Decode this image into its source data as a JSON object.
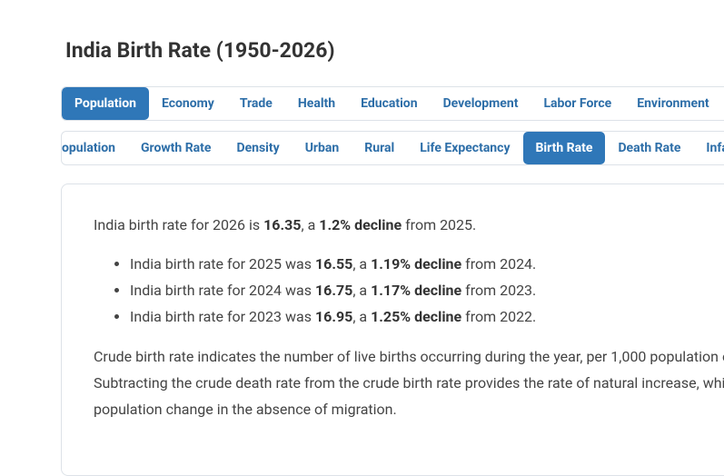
{
  "header": {
    "title": "India Birth Rate (1950-2026)"
  },
  "main_tabs": [
    "Population",
    "Economy",
    "Trade",
    "Health",
    "Education",
    "Development",
    "Labor Force",
    "Environment"
  ],
  "sub_tabs": [
    "opulation",
    "Growth Rate",
    "Density",
    "Urban",
    "Rural",
    "Life Expectancy",
    "Birth Rate",
    "Death Rate",
    "Infa"
  ],
  "intro": [
    "India birth rate for 2026 is ",
    "16.35",
    ", a ",
    "1.2% decline",
    " from 2025."
  ],
  "bullets": [
    [
      "India birth rate for 2025 was ",
      "16.55",
      ", a ",
      "1.19% decline",
      " from 2024."
    ],
    [
      "India birth rate for 2024 was ",
      "16.75",
      ", a ",
      "1.17% decline",
      " from 2023."
    ],
    [
      "India birth rate for 2023 was ",
      "16.95",
      ", a ",
      "1.25% decline",
      " from 2022."
    ]
  ],
  "description": [
    "Crude birth rate indicates the number of live births occurring during the year, per 1,000 population e",
    "Subtracting the crude death rate from the crude birth rate provides the rate of natural increase, whi",
    "population change in the absence of migration."
  ]
}
